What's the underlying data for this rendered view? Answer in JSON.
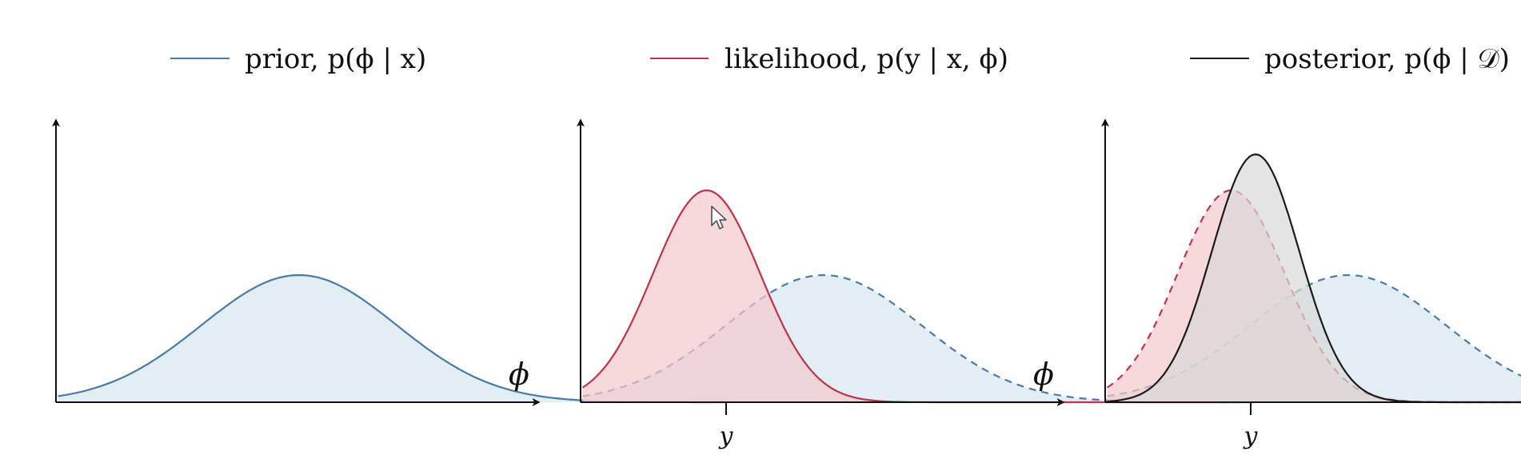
{
  "legend": {
    "prior_label": "prior, p(ϕ | x)",
    "likelihood_label": "likelihood, p(y | x, ϕ)",
    "posterior_label": "posterior, p(ϕ | 𝒟)"
  },
  "axis": {
    "phi_label": "ϕ",
    "y_tick_label": "y"
  },
  "colors": {
    "prior_line": "#4a7aa8",
    "prior_fill": "#d6e6f0",
    "likelihood_line": "#c0334a",
    "likelihood_fill": "#f4c8cc",
    "posterior_line": "#1a1a1a",
    "posterior_fill": "#d9d9d9",
    "axis": "#111111"
  },
  "curves": {
    "prior": {
      "mean": 0.0,
      "sd": 1.0,
      "peak": 0.6
    },
    "likelihood": {
      "mean": -1.2,
      "sd": 0.55,
      "peak": 1.0
    },
    "posterior": {
      "mean": -0.95,
      "sd": 0.45,
      "peak": 1.17
    }
  },
  "panels": [
    {
      "name": "prior-panel",
      "show": [
        "prior"
      ],
      "dashed": [],
      "y_tick": false,
      "phi_label": true
    },
    {
      "name": "likelihood-panel",
      "show": [
        "prior",
        "likelihood"
      ],
      "dashed": [
        "prior"
      ],
      "y_tick": true,
      "phi_label": true
    },
    {
      "name": "posterior-panel",
      "show": [
        "prior",
        "likelihood",
        "posterior"
      ],
      "dashed": [
        "prior",
        "likelihood"
      ],
      "y_tick": true,
      "phi_label": false
    }
  ],
  "cursor_icon": "mouse-pointer-icon"
}
